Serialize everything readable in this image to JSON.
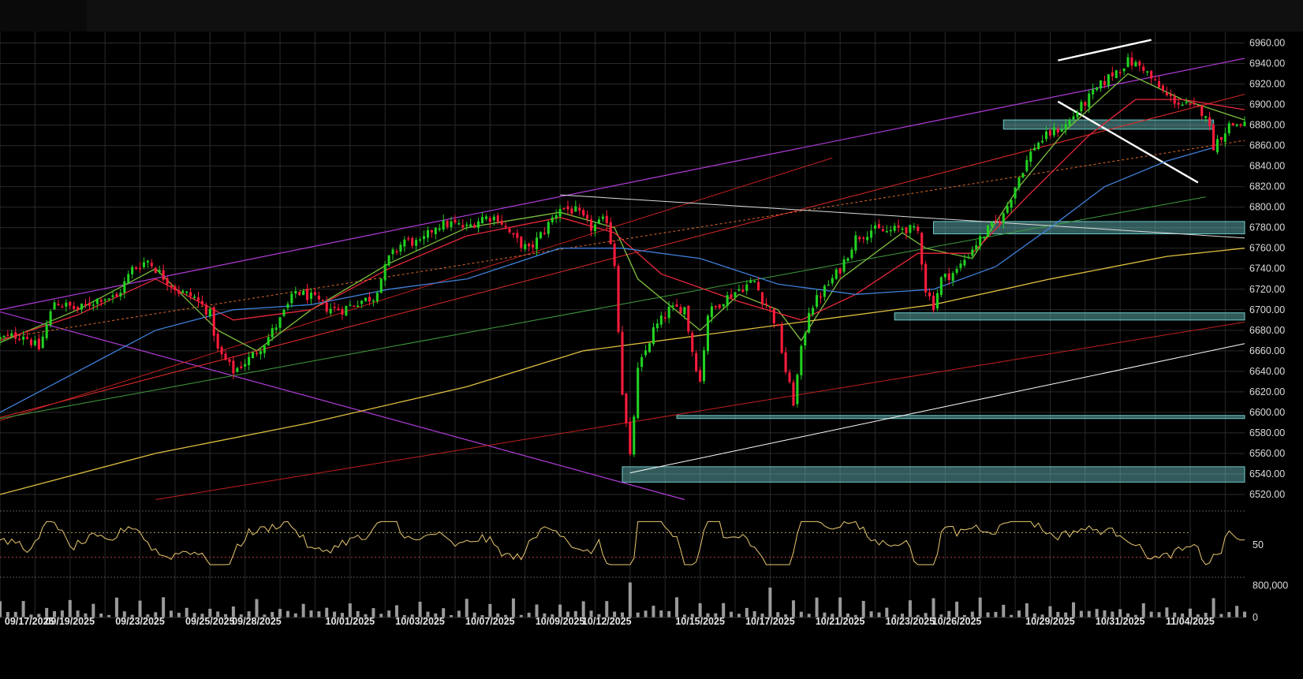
{
  "chart_data": {
    "type": "candlestick",
    "colors": {
      "background": "#000000",
      "grid": "#2a2a2a",
      "up": "#22d222",
      "down": "#ff1c3c",
      "sma_fast": "#7fbf3f",
      "sma_mid": "#e8283c",
      "sma_slow": "#3f7fd8",
      "sma_long": "#e0c040",
      "rsi_line": "#e8c870",
      "volume": "#9a9a9a",
      "zone_fill": "#6ec8c8",
      "trend_purple": "#b03cd8",
      "trend_white": "#ffffff"
    },
    "price_axis": {
      "min": 6510,
      "max": 6965,
      "ticks": [
        "6960.00",
        "6940.00",
        "6920.00",
        "6900.00",
        "6880.00",
        "6860.00",
        "6840.00",
        "6820.00",
        "6800.00",
        "6780.00",
        "6760.00",
        "6740.00",
        "6720.00",
        "6700.00",
        "6680.00",
        "6660.00",
        "6640.00",
        "6620.00",
        "6600.00",
        "6580.00",
        "6560.00",
        "6540.00",
        "6520.00"
      ]
    },
    "rsi_axis": {
      "min": 0,
      "max": 100,
      "ticks": [
        "50"
      ],
      "levels": [
        70,
        30
      ]
    },
    "volume_axis": {
      "max": 950000,
      "ticks": [
        "800,000",
        "0"
      ]
    },
    "x_axis": {
      "labels": [
        {
          "date": "09/17/2025",
          "t": 0.6
        },
        {
          "date": "09/19/2025",
          "t": 9
        },
        {
          "date": "09/23/2025",
          "t": 18
        },
        {
          "date": "09/25/2025",
          "t": 27
        },
        {
          "date": "09/28/2025",
          "t": 33
        },
        {
          "date": "10/01/2025",
          "t": 45
        },
        {
          "date": "10/03/2025",
          "t": 54
        },
        {
          "date": "10/07/2025",
          "t": 63
        },
        {
          "date": "10/09/2025",
          "t": 72
        },
        {
          "date": "10/12/2025",
          "t": 78
        },
        {
          "date": "10/15/2025",
          "t": 90
        },
        {
          "date": "10/17/2025",
          "t": 99
        },
        {
          "date": "10/21/2025",
          "t": 108
        },
        {
          "date": "10/23/2025",
          "t": 117
        },
        {
          "date": "10/26/2025",
          "t": 123
        },
        {
          "date": "10/29/2025",
          "t": 135
        },
        {
          "date": "10/31/2025",
          "t": 144
        },
        {
          "date": "11/04/2025",
          "t": 153
        }
      ],
      "t_max": 160
    },
    "anchors": [
      [
        0,
        6672
      ],
      [
        3,
        6676
      ],
      [
        5,
        6662
      ],
      [
        7,
        6708
      ],
      [
        10,
        6700
      ],
      [
        13,
        6712
      ],
      [
        15,
        6712
      ],
      [
        17,
        6740
      ],
      [
        19,
        6748
      ],
      [
        21,
        6732
      ],
      [
        23,
        6718
      ],
      [
        25,
        6712
      ],
      [
        27,
        6696
      ],
      [
        28,
        6660
      ],
      [
        30,
        6640
      ],
      [
        32,
        6652
      ],
      [
        34,
        6668
      ],
      [
        36,
        6690
      ],
      [
        38,
        6718
      ],
      [
        40,
        6712
      ],
      [
        42,
        6702
      ],
      [
        44,
        6700
      ],
      [
        46,
        6708
      ],
      [
        48,
        6712
      ],
      [
        50,
        6750
      ],
      [
        52,
        6768
      ],
      [
        54,
        6764
      ],
      [
        56,
        6782
      ],
      [
        58,
        6784
      ],
      [
        60,
        6780
      ],
      [
        62,
        6790
      ],
      [
        64,
        6790
      ],
      [
        66,
        6770
      ],
      [
        68,
        6758
      ],
      [
        70,
        6778
      ],
      [
        72,
        6800
      ],
      [
        74,
        6796
      ],
      [
        76,
        6780
      ],
      [
        78,
        6788
      ],
      [
        79,
        6745
      ],
      [
        80,
        6620
      ],
      [
        81,
        6555
      ],
      [
        82,
        6640
      ],
      [
        84,
        6680
      ],
      [
        86,
        6700
      ],
      [
        88,
        6702
      ],
      [
        89,
        6660
      ],
      [
        90,
        6630
      ],
      [
        91,
        6696
      ],
      [
        93,
        6710
      ],
      [
        95,
        6720
      ],
      [
        97,
        6728
      ],
      [
        98,
        6710
      ],
      [
        99,
        6700
      ],
      [
        100,
        6680
      ],
      [
        101,
        6640
      ],
      [
        102,
        6610
      ],
      [
        103,
        6660
      ],
      [
        104,
        6700
      ],
      [
        106,
        6720
      ],
      [
        108,
        6740
      ],
      [
        110,
        6770
      ],
      [
        112,
        6778
      ],
      [
        114,
        6776
      ],
      [
        116,
        6780
      ],
      [
        118,
        6776
      ],
      [
        119,
        6720
      ],
      [
        120,
        6704
      ],
      [
        121,
        6730
      ],
      [
        123,
        6738
      ],
      [
        125,
        6760
      ],
      [
        127,
        6778
      ],
      [
        129,
        6792
      ],
      [
        131,
        6830
      ],
      [
        133,
        6860
      ],
      [
        135,
        6872
      ],
      [
        137,
        6880
      ],
      [
        139,
        6898
      ],
      [
        141,
        6915
      ],
      [
        143,
        6930
      ],
      [
        145,
        6942
      ],
      [
        147,
        6936
      ],
      [
        148,
        6925
      ],
      [
        150,
        6908
      ],
      [
        152,
        6900
      ],
      [
        154,
        6895
      ],
      [
        155,
        6892
      ],
      [
        156,
        6860
      ],
      [
        158,
        6880
      ],
      [
        160,
        6882
      ]
    ],
    "sma": [
      {
        "key": "sma_fast",
        "points": [
          [
            0,
            6668
          ],
          [
            10,
            6700
          ],
          [
            20,
            6740
          ],
          [
            28,
            6680
          ],
          [
            33,
            6660
          ],
          [
            40,
            6700
          ],
          [
            50,
            6745
          ],
          [
            60,
            6780
          ],
          [
            72,
            6795
          ],
          [
            79,
            6780
          ],
          [
            82,
            6730
          ],
          [
            90,
            6680
          ],
          [
            95,
            6715
          ],
          [
            100,
            6700
          ],
          [
            103,
            6670
          ],
          [
            108,
            6730
          ],
          [
            116,
            6775
          ],
          [
            119,
            6760
          ],
          [
            125,
            6750
          ],
          [
            131,
            6820
          ],
          [
            137,
            6875
          ],
          [
            145,
            6930
          ],
          [
            152,
            6905
          ],
          [
            160,
            6885
          ]
        ]
      },
      {
        "key": "sma_mid",
        "points": [
          [
            0,
            6670
          ],
          [
            10,
            6695
          ],
          [
            20,
            6730
          ],
          [
            30,
            6690
          ],
          [
            40,
            6700
          ],
          [
            50,
            6740
          ],
          [
            60,
            6772
          ],
          [
            72,
            6790
          ],
          [
            79,
            6775
          ],
          [
            85,
            6735
          ],
          [
            95,
            6708
          ],
          [
            103,
            6690
          ],
          [
            110,
            6715
          ],
          [
            118,
            6755
          ],
          [
            125,
            6755
          ],
          [
            132,
            6810
          ],
          [
            140,
            6870
          ],
          [
            146,
            6905
          ],
          [
            152,
            6905
          ],
          [
            160,
            6895
          ]
        ]
      },
      {
        "key": "sma_slow",
        "points": [
          [
            0,
            6600
          ],
          [
            10,
            6640
          ],
          [
            20,
            6680
          ],
          [
            30,
            6700
          ],
          [
            40,
            6705
          ],
          [
            50,
            6720
          ],
          [
            60,
            6730
          ],
          [
            72,
            6760
          ],
          [
            80,
            6760
          ],
          [
            90,
            6750
          ],
          [
            100,
            6725
          ],
          [
            110,
            6715
          ],
          [
            120,
            6720
          ],
          [
            128,
            6742
          ],
          [
            135,
            6780
          ],
          [
            142,
            6820
          ],
          [
            150,
            6845
          ],
          [
            156,
            6858
          ]
        ]
      },
      {
        "key": "sma_long",
        "points": [
          [
            0,
            6520
          ],
          [
            20,
            6560
          ],
          [
            40,
            6590
          ],
          [
            60,
            6625
          ],
          [
            75,
            6660
          ],
          [
            90,
            6675
          ],
          [
            105,
            6690
          ],
          [
            120,
            6705
          ],
          [
            135,
            6730
          ],
          [
            150,
            6752
          ],
          [
            160,
            6760
          ]
        ]
      }
    ],
    "trend_lines": [
      {
        "color": "#b03cd8",
        "w": 1.2,
        "pts": [
          [
            0,
            6700
          ],
          [
            160,
            6945
          ]
        ]
      },
      {
        "color": "#b03cd8",
        "w": 1.2,
        "pts": [
          [
            0,
            6698
          ],
          [
            88,
            6515
          ]
        ]
      },
      {
        "color": "#e02a2a",
        "w": 1,
        "pts": [
          [
            0,
            6595
          ],
          [
            160,
            6910
          ]
        ]
      },
      {
        "color": "#c02020",
        "w": 1,
        "pts": [
          [
            0,
            6592
          ],
          [
            107,
            6848
          ]
        ]
      },
      {
        "color": "#c02020",
        "w": 1,
        "pts": [
          [
            20,
            6515
          ],
          [
            160,
            6688
          ]
        ]
      },
      {
        "color": "#e06a2a",
        "w": 1,
        "dash": "3,3",
        "pts": [
          [
            0,
            6672
          ],
          [
            160,
            6865
          ]
        ]
      },
      {
        "color": "#3f9f3f",
        "w": 1,
        "pts": [
          [
            0,
            6594
          ],
          [
            155,
            6810
          ]
        ]
      },
      {
        "color": "#dddddd",
        "w": 1,
        "pts": [
          [
            72,
            6812
          ],
          [
            160,
            6770
          ]
        ]
      },
      {
        "color": "#ffffff",
        "w": 1,
        "pts": [
          [
            81,
            6541
          ],
          [
            160,
            6667
          ]
        ]
      },
      {
        "color": "#ffffff",
        "w": 2.4,
        "pts": [
          [
            136,
            6943
          ],
          [
            148,
            6963
          ]
        ]
      },
      {
        "color": "#ffffff",
        "w": 2.4,
        "pts": [
          [
            136,
            6903
          ],
          [
            154,
            6824
          ]
        ]
      }
    ],
    "zones": [
      {
        "t0": 129,
        "t1": 156,
        "low": 6876,
        "high": 6885
      },
      {
        "t0": 120,
        "t1": 160,
        "low": 6774,
        "high": 6786
      },
      {
        "t0": 115,
        "t1": 160,
        "low": 6690,
        "high": 6697
      },
      {
        "t0": 87,
        "t1": 160,
        "low": 6594,
        "high": 6597
      },
      {
        "t0": 80,
        "t1": 160,
        "low": 6532,
        "high": 6547
      }
    ]
  }
}
